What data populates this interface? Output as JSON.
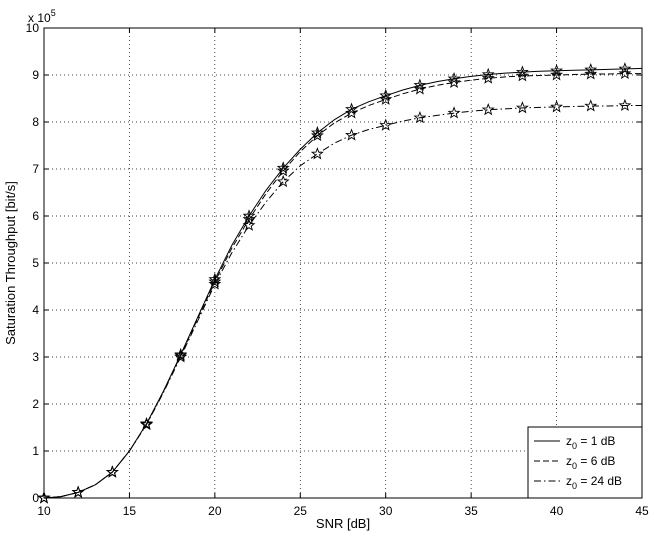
{
  "chart_data": {
    "type": "line",
    "xlabel": "SNR [dB]",
    "ylabel": "Saturation Throughput [bit/s]",
    "y_multiplier_label": {
      "base": "x 10",
      "exponent": "5"
    },
    "xlim": [
      10,
      45
    ],
    "ylim": [
      0,
      10
    ],
    "xticks": [
      10,
      15,
      20,
      25,
      30,
      35,
      40,
      45
    ],
    "yticks": [
      0,
      1,
      2,
      3,
      4,
      5,
      6,
      7,
      8,
      9,
      10
    ],
    "grid": true,
    "legend_position": "bottom-right",
    "series": [
      {
        "name_main": "z",
        "name_sub": "0",
        "name_rest": " = 1 dB",
        "line_style": "solid",
        "x": [
          10,
          11,
          12,
          13,
          14,
          15,
          16,
          17,
          18,
          19,
          20,
          21,
          22,
          23,
          24,
          25,
          26,
          27,
          28,
          29,
          30,
          31,
          32,
          33,
          34,
          35,
          36,
          37,
          38,
          39,
          40,
          41,
          42,
          43,
          44,
          45
        ],
        "y": [
          0,
          0.03,
          0.12,
          0.28,
          0.55,
          1.0,
          1.58,
          2.28,
          3.05,
          3.85,
          4.65,
          5.38,
          6.0,
          6.55,
          7.02,
          7.42,
          7.77,
          8.05,
          8.27,
          8.43,
          8.56,
          8.68,
          8.78,
          8.86,
          8.92,
          8.97,
          9.01,
          9.04,
          9.06,
          9.08,
          9.09,
          9.1,
          9.11,
          9.12,
          9.13,
          9.14
        ],
        "marker_x": [
          10,
          12,
          14,
          16,
          18,
          20,
          22,
          24,
          26,
          28,
          30,
          32,
          34,
          36,
          38,
          40,
          42,
          44
        ],
        "marker_y": [
          0,
          0.12,
          0.55,
          1.58,
          3.05,
          4.65,
          6.0,
          7.02,
          7.77,
          8.27,
          8.56,
          8.78,
          8.92,
          9.01,
          9.06,
          9.09,
          9.11,
          9.13
        ]
      },
      {
        "name_main": "z",
        "name_sub": "0",
        "name_rest": " = 6 dB",
        "line_style": "dashed",
        "x": [
          10,
          11,
          12,
          13,
          14,
          15,
          16,
          17,
          18,
          19,
          20,
          21,
          22,
          23,
          24,
          25,
          26,
          27,
          28,
          29,
          30,
          31,
          32,
          33,
          34,
          35,
          36,
          37,
          38,
          39,
          40,
          41,
          42,
          43,
          44,
          45
        ],
        "y": [
          0,
          0.03,
          0.12,
          0.28,
          0.55,
          1.0,
          1.57,
          2.27,
          3.03,
          3.82,
          4.6,
          5.32,
          5.93,
          6.48,
          6.96,
          7.37,
          7.71,
          7.98,
          8.19,
          8.35,
          8.48,
          8.6,
          8.7,
          8.78,
          8.84,
          8.89,
          8.93,
          8.96,
          8.98,
          8.99,
          9.0,
          9.01,
          9.02,
          9.02,
          9.03,
          9.03
        ],
        "marker_x": [
          10,
          12,
          14,
          16,
          18,
          20,
          22,
          24,
          26,
          28,
          30,
          32,
          34,
          36,
          38,
          40,
          42,
          44
        ],
        "marker_y": [
          0,
          0.12,
          0.55,
          1.57,
          3.03,
          4.6,
          5.93,
          6.96,
          7.71,
          8.19,
          8.48,
          8.7,
          8.84,
          8.93,
          8.98,
          9.0,
          9.02,
          9.03
        ]
      },
      {
        "name_main": "z",
        "name_sub": "0",
        "name_rest": " = 24 dB",
        "line_style": "dashdot",
        "x": [
          10,
          11,
          12,
          13,
          14,
          15,
          16,
          17,
          18,
          19,
          20,
          21,
          22,
          23,
          24,
          25,
          26,
          27,
          28,
          29,
          30,
          31,
          32,
          33,
          34,
          35,
          36,
          37,
          38,
          39,
          40,
          41,
          42,
          43,
          44,
          45
        ],
        "y": [
          0,
          0.03,
          0.12,
          0.28,
          0.55,
          1.0,
          1.56,
          2.25,
          3.0,
          3.77,
          4.55,
          5.22,
          5.8,
          6.3,
          6.73,
          7.07,
          7.32,
          7.55,
          7.72,
          7.84,
          7.93,
          8.02,
          8.09,
          8.14,
          8.19,
          8.23,
          8.26,
          8.28,
          8.3,
          8.31,
          8.32,
          8.33,
          8.34,
          8.34,
          8.35,
          8.35
        ],
        "marker_x": [
          10,
          12,
          14,
          16,
          18,
          20,
          22,
          24,
          26,
          28,
          30,
          32,
          34,
          36,
          38,
          40,
          42,
          44
        ],
        "marker_y": [
          0,
          0.12,
          0.55,
          1.56,
          3.0,
          4.55,
          5.8,
          6.73,
          7.32,
          7.72,
          7.93,
          8.09,
          8.19,
          8.26,
          8.3,
          8.32,
          8.34,
          8.35
        ]
      }
    ]
  }
}
